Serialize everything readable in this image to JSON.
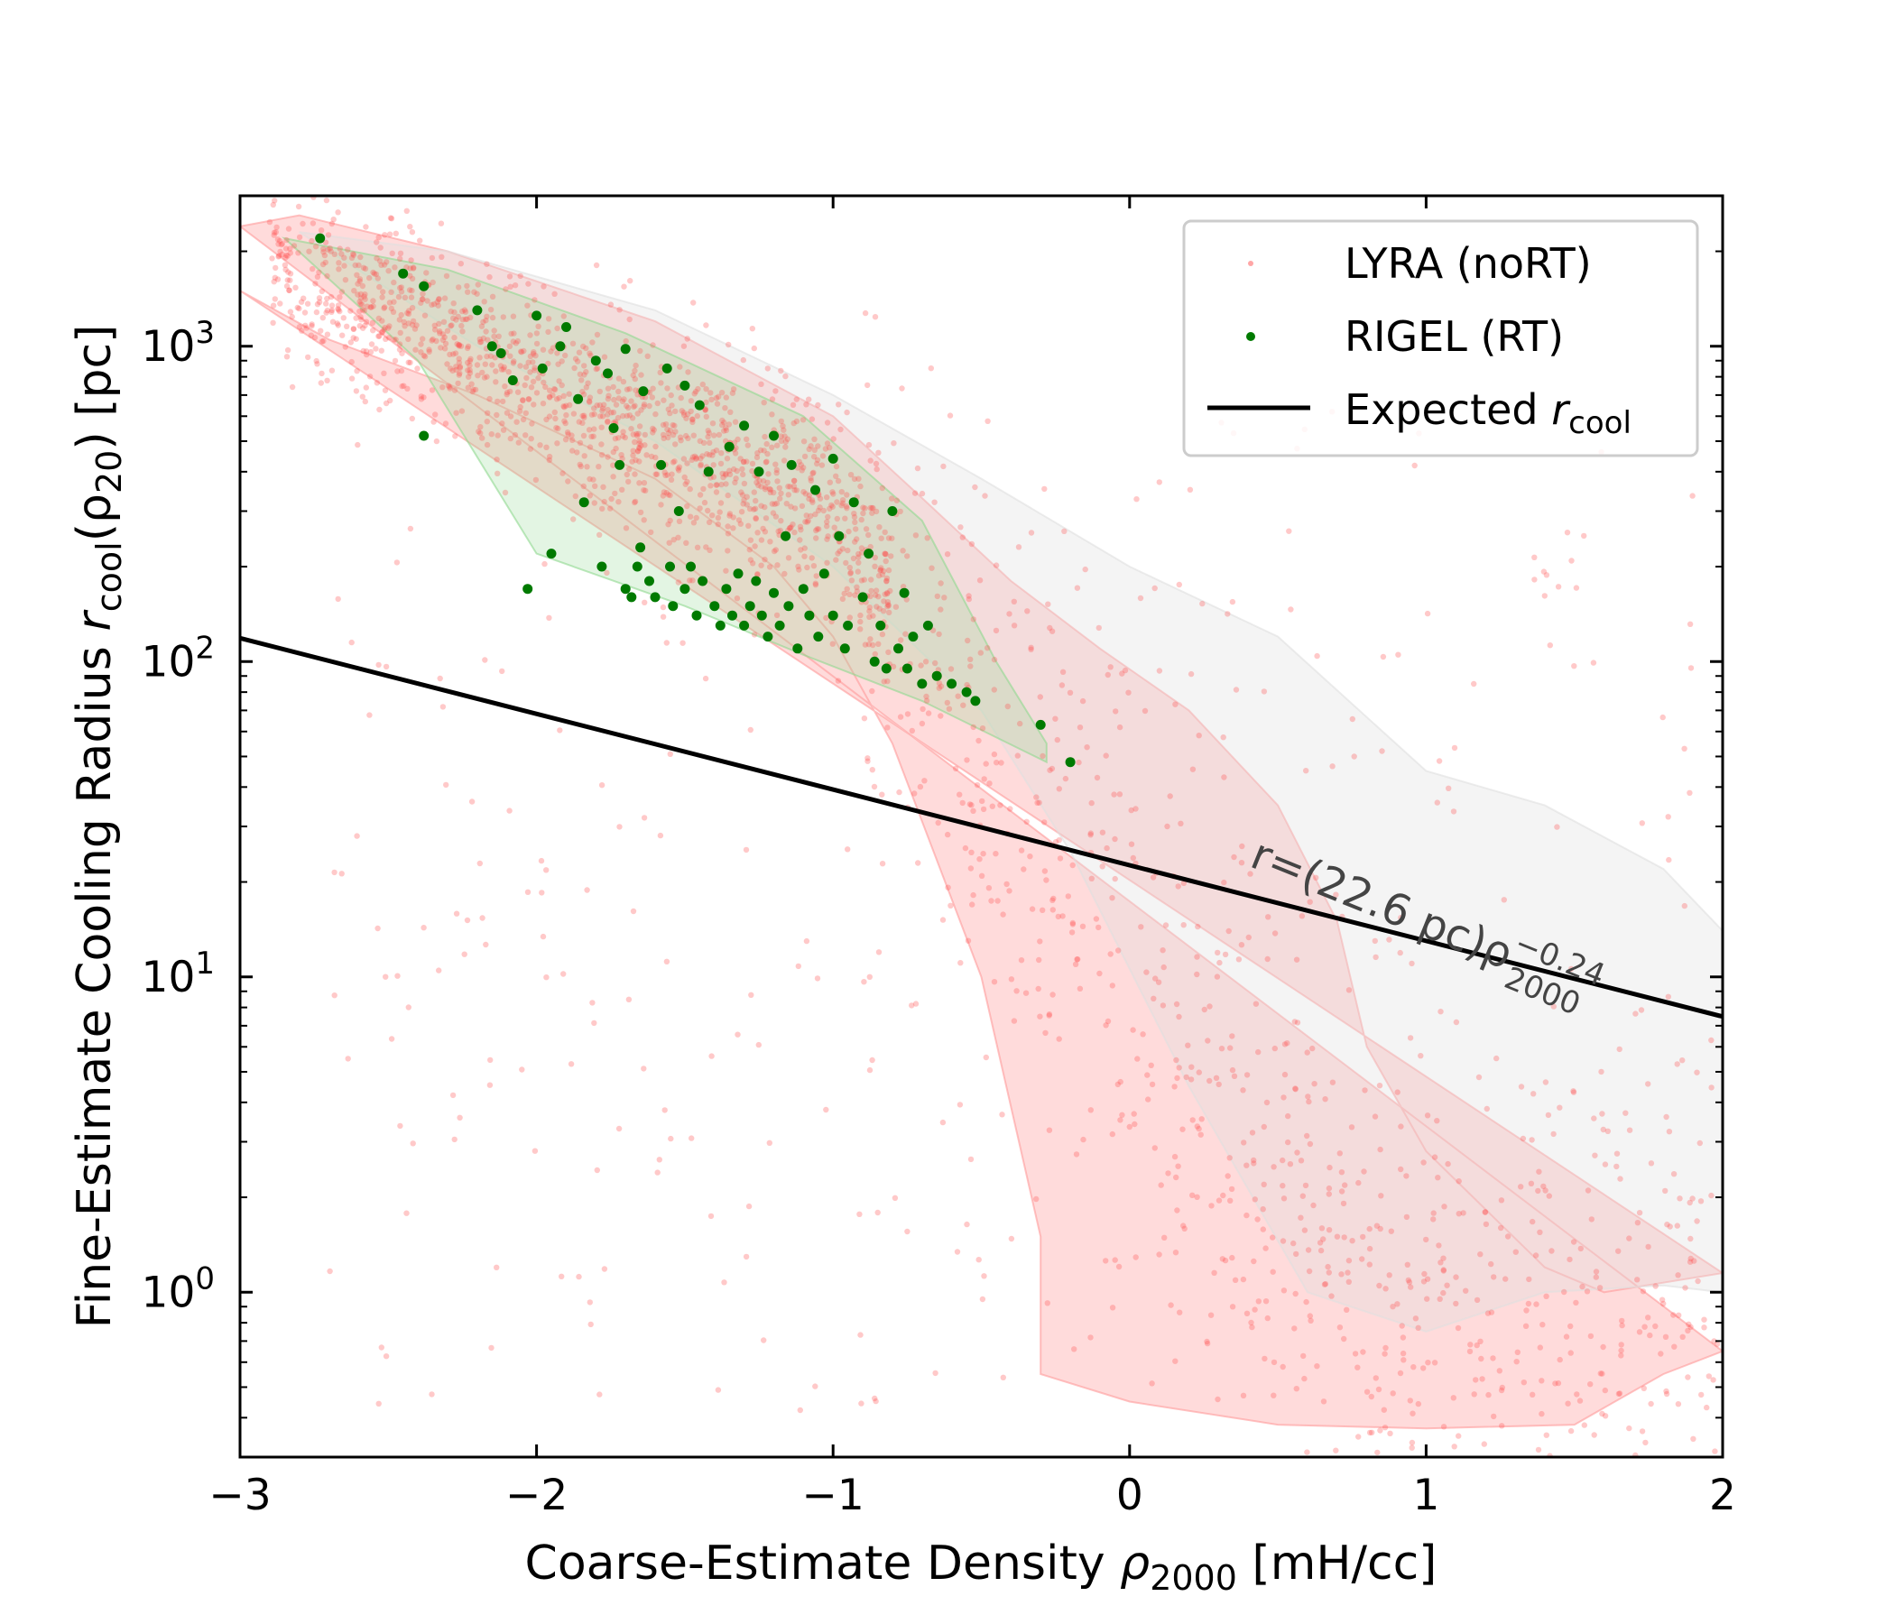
{
  "chart_data": {
    "type": "scatter",
    "title": "",
    "xlabel": "Coarse-Estimate Density ρ_2000 [mH/cc]",
    "xlabel_parts": {
      "main": "Coarse-Estimate Density ",
      "symbol": "ρ",
      "sub": "2000",
      "unit": " [mH/cc]"
    },
    "ylabel": "Fine-Estimate Cooling Radius r_cool(ρ_20) [pc]",
    "ylabel_parts": {
      "main": "Fine-Estimate Cooling Radius ",
      "symbol": "r",
      "sub": "cool",
      "mid": "(ρ",
      "sub2": "20",
      "unit": ") [pc]"
    },
    "xscale": "linear",
    "yscale": "log",
    "xlim": [
      -3,
      2
    ],
    "ylim": [
      0.3,
      3000
    ],
    "xticks": [
      -3,
      -2,
      -1,
      0,
      1,
      2
    ],
    "xtick_labels": [
      "−3",
      "−2",
      "−1",
      "0",
      "1",
      "2"
    ],
    "yticks": [
      1,
      10,
      100,
      1000
    ],
    "ytick_labels": [
      {
        "base": "10",
        "exp": "0"
      },
      {
        "base": "10",
        "exp": "1"
      },
      {
        "base": "10",
        "exp": "2"
      },
      {
        "base": "10",
        "exp": "3"
      }
    ],
    "legend": {
      "position": "upper right",
      "entries": [
        {
          "label": "LYRA (noRT)",
          "color": "#ff4d4d",
          "marker": "dot"
        },
        {
          "label": "RIGEL (RT)",
          "color": "#007a00",
          "marker": "dot"
        },
        {
          "label": "Expected ",
          "label_symbol": "r",
          "label_sub": "cool",
          "color": "#000000",
          "marker": "line"
        }
      ]
    },
    "line": {
      "name": "Expected r_cool",
      "normalization_pc": 22.6,
      "slope": -0.24,
      "color": "#000000"
    },
    "annotation": {
      "text": "r=(22.6 pc)ρ",
      "sub": "2000",
      "sup": "−0.24",
      "anchor_x": 0.4,
      "anchor_y": 22.5,
      "rotation_deg": 22
    },
    "bands": [
      {
        "name": "LYRA 1σ band",
        "color": "#ff9999",
        "opacity": 0.35,
        "upper": [
          [
            -3,
            2400
          ],
          [
            -2.8,
            2600
          ],
          [
            -2.3,
            2000
          ],
          [
            -1.6,
            1200
          ],
          [
            -1.0,
            600
          ],
          [
            -0.7,
            330
          ],
          [
            -0.4,
            180
          ],
          [
            -0.1,
            110
          ],
          [
            0.2,
            70
          ],
          [
            0.5,
            35
          ],
          [
            0.7,
            15
          ],
          [
            0.8,
            6
          ],
          [
            1.0,
            2.8
          ],
          [
            1.4,
            1.2
          ],
          [
            1.6,
            1.0
          ],
          [
            2.0,
            1.15
          ]
        ],
        "lower": [
          [
            -3,
            1500
          ],
          [
            -2.7,
            1050
          ],
          [
            -2.2,
            700
          ],
          [
            -1.6,
            380
          ],
          [
            -1.2,
            200
          ],
          [
            -1.0,
            120
          ],
          [
            -0.8,
            55
          ],
          [
            -0.5,
            10
          ],
          [
            -0.3,
            1.5
          ],
          [
            -0.3,
            0.55
          ],
          [
            0.0,
            0.45
          ],
          [
            0.5,
            0.38
          ],
          [
            1.0,
            0.37
          ],
          [
            1.5,
            0.38
          ],
          [
            1.8,
            0.55
          ],
          [
            2.0,
            0.65
          ]
        ]
      },
      {
        "name": "LYRA 2σ band",
        "color": "#e0e0e0",
        "opacity": 0.35,
        "upper": [
          [
            -2.8,
            2300
          ],
          [
            -2.3,
            2000
          ],
          [
            -1.6,
            1300
          ],
          [
            -1.0,
            700
          ],
          [
            -0.5,
            380
          ],
          [
            0.0,
            200
          ],
          [
            0.5,
            120
          ],
          [
            1.0,
            45
          ],
          [
            1.4,
            35
          ],
          [
            1.8,
            22
          ],
          [
            2.0,
            14
          ]
        ],
        "lower": [
          [
            2.0,
            1.0
          ],
          [
            1.8,
            1.05
          ],
          [
            1.4,
            1.0
          ],
          [
            1.0,
            0.75
          ],
          [
            0.6,
            1.0
          ],
          [
            0.2,
            4.5
          ],
          [
            -0.2,
            25
          ],
          [
            -0.5,
            70
          ],
          [
            -1.0,
            200
          ],
          [
            -1.6,
            500
          ],
          [
            -2.2,
            1000
          ],
          [
            -2.8,
            2300
          ]
        ]
      },
      {
        "name": "RIGEL band",
        "color": "#90d890",
        "opacity": 0.25,
        "polygon": [
          [
            -2.85,
            2200
          ],
          [
            -2.3,
            1750
          ],
          [
            -1.7,
            1100
          ],
          [
            -1.1,
            600
          ],
          [
            -0.7,
            280
          ],
          [
            -0.45,
            100
          ],
          [
            -0.28,
            55
          ],
          [
            -0.28,
            48
          ],
          [
            -0.7,
            75
          ],
          [
            -1.1,
            105
          ],
          [
            -1.5,
            150
          ],
          [
            -2.0,
            220
          ],
          [
            -2.4,
            900
          ],
          [
            -2.85,
            2200
          ]
        ]
      }
    ],
    "series": [
      {
        "name": "LYRA (noRT)",
        "color": "#ff4d4d",
        "opacity": 0.3,
        "n_points": 2500,
        "points_note": "dense cloud along a broken power law from (-3, ~2000 pc) down through (-1, ~300 pc) and (0, ~5 pc) to (1-2, ~0.5 pc), plus scattered outliers"
      },
      {
        "name": "RIGEL (RT)",
        "color": "#007a00",
        "opacity": 1.0,
        "points": [
          [
            -2.73,
            2200
          ],
          [
            -2.45,
            1700
          ],
          [
            -2.38,
            1550
          ],
          [
            -2.38,
            520
          ],
          [
            -2.2,
            1300
          ],
          [
            -2.15,
            1000
          ],
          [
            -2.12,
            950
          ],
          [
            -2.08,
            780
          ],
          [
            -2.03,
            170
          ],
          [
            -2.0,
            1250
          ],
          [
            -1.98,
            850
          ],
          [
            -1.95,
            220
          ],
          [
            -1.92,
            1000
          ],
          [
            -1.9,
            1150
          ],
          [
            -1.86,
            680
          ],
          [
            -1.84,
            320
          ],
          [
            -1.8,
            900
          ],
          [
            -1.78,
            200
          ],
          [
            -1.76,
            820
          ],
          [
            -1.74,
            550
          ],
          [
            -1.72,
            420
          ],
          [
            -1.7,
            980
          ],
          [
            -1.7,
            170
          ],
          [
            -1.68,
            160
          ],
          [
            -1.66,
            200
          ],
          [
            -1.65,
            230
          ],
          [
            -1.64,
            720
          ],
          [
            -1.62,
            180
          ],
          [
            -1.6,
            160
          ],
          [
            -1.58,
            420
          ],
          [
            -1.56,
            850
          ],
          [
            -1.55,
            200
          ],
          [
            -1.54,
            150
          ],
          [
            -1.52,
            300
          ],
          [
            -1.5,
            750
          ],
          [
            -1.5,
            170
          ],
          [
            -1.48,
            200
          ],
          [
            -1.46,
            140
          ],
          [
            -1.45,
            650
          ],
          [
            -1.44,
            180
          ],
          [
            -1.42,
            400
          ],
          [
            -1.4,
            150
          ],
          [
            -1.38,
            130
          ],
          [
            -1.36,
            170
          ],
          [
            -1.35,
            480
          ],
          [
            -1.34,
            140
          ],
          [
            -1.32,
            190
          ],
          [
            -1.3,
            560
          ],
          [
            -1.3,
            130
          ],
          [
            -1.28,
            150
          ],
          [
            -1.26,
            180
          ],
          [
            -1.25,
            400
          ],
          [
            -1.24,
            140
          ],
          [
            -1.22,
            120
          ],
          [
            -1.2,
            520
          ],
          [
            -1.2,
            165
          ],
          [
            -1.18,
            130
          ],
          [
            -1.16,
            250
          ],
          [
            -1.15,
            150
          ],
          [
            -1.14,
            420
          ],
          [
            -1.12,
            110
          ],
          [
            -1.1,
            170
          ],
          [
            -1.08,
            140
          ],
          [
            -1.06,
            350
          ],
          [
            -1.05,
            120
          ],
          [
            -1.03,
            190
          ],
          [
            -1.0,
            440
          ],
          [
            -1.0,
            140
          ],
          [
            -0.98,
            250
          ],
          [
            -0.96,
            110
          ],
          [
            -0.95,
            130
          ],
          [
            -0.93,
            320
          ],
          [
            -0.9,
            160
          ],
          [
            -0.88,
            220
          ],
          [
            -0.86,
            100
          ],
          [
            -0.84,
            130
          ],
          [
            -0.82,
            95
          ],
          [
            -0.8,
            300
          ],
          [
            -0.78,
            110
          ],
          [
            -0.76,
            165
          ],
          [
            -0.75,
            95
          ],
          [
            -0.73,
            120
          ],
          [
            -0.7,
            85
          ],
          [
            -0.68,
            130
          ],
          [
            -0.65,
            90
          ],
          [
            -0.6,
            85
          ],
          [
            -0.55,
            80
          ],
          [
            -0.52,
            75
          ],
          [
            -0.3,
            63
          ],
          [
            -0.2,
            48
          ]
        ]
      }
    ]
  }
}
